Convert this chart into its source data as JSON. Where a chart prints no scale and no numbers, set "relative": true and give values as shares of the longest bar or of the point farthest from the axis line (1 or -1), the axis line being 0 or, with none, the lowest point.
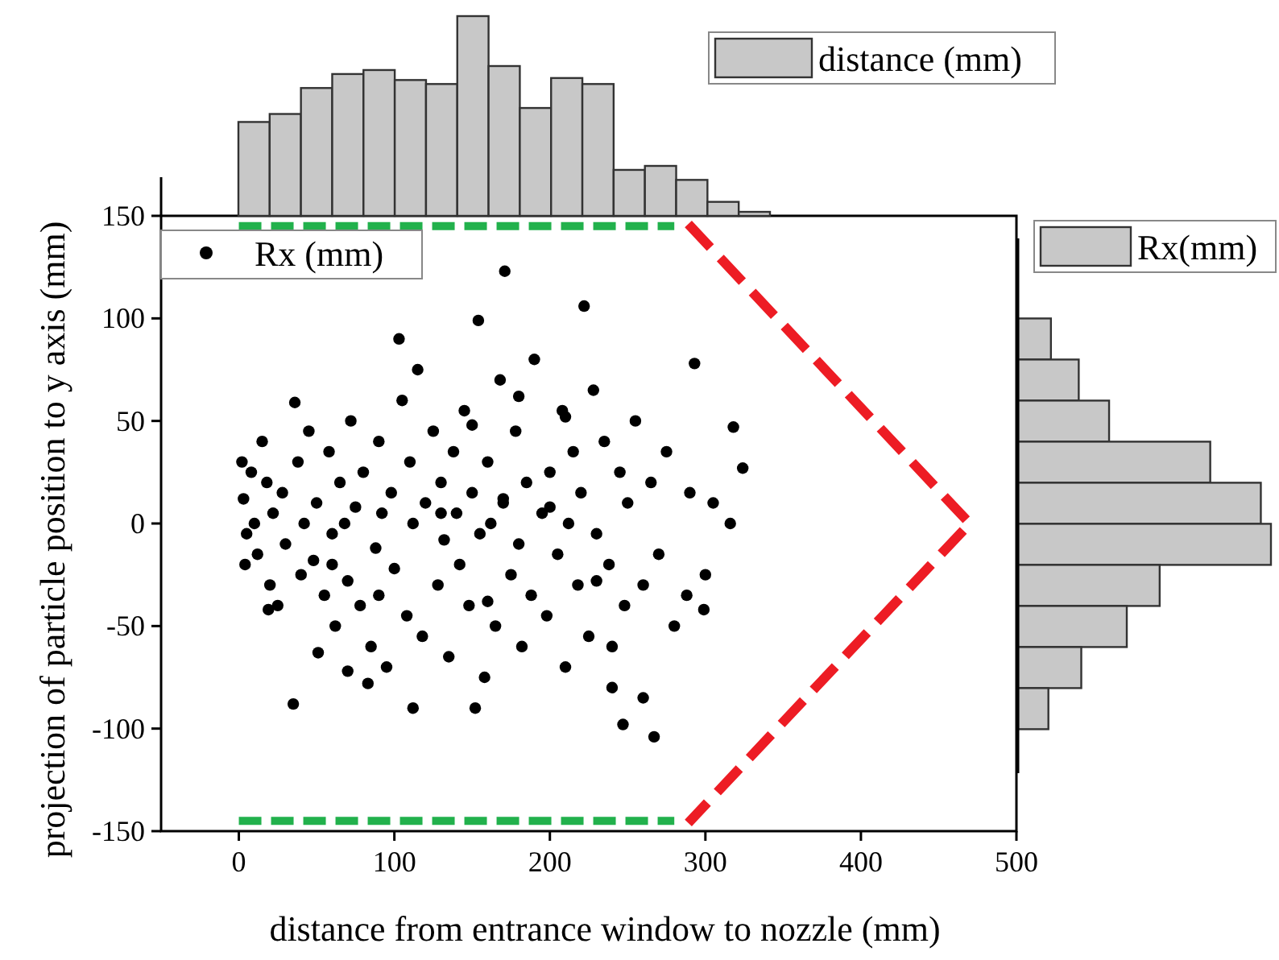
{
  "chart_data": [
    {
      "type": "scatter",
      "xlabel": "distance from entrance window to nozzle (mm)",
      "ylabel": "projection of particle position to y axis (mm)",
      "xlim": [
        -50,
        500
      ],
      "ylim": [
        -150,
        150
      ],
      "xticks": [
        0,
        100,
        200,
        300,
        400,
        500
      ],
      "yticks": [
        -150,
        -100,
        -50,
        0,
        50,
        100,
        150
      ],
      "legend": "top left",
      "marker": "circle",
      "series": [
        {
          "name": "Rx (mm)",
          "color": "#000000",
          "x": [
            171,
            222,
            154,
            103,
            115,
            36,
            293,
            318,
            324,
            316,
            267,
            247,
            288,
            299,
            112,
            152,
            19,
            51,
            83,
            2,
            3,
            5,
            4,
            8,
            10,
            12,
            15,
            18,
            20,
            22,
            25,
            28,
            30,
            38,
            40,
            42,
            45,
            48,
            50,
            55,
            58,
            60,
            62,
            65,
            68,
            70,
            72,
            75,
            78,
            80,
            85,
            88,
            90,
            92,
            95,
            98,
            100,
            105,
            108,
            110,
            112,
            118,
            120,
            125,
            128,
            130,
            132,
            135,
            138,
            140,
            142,
            145,
            148,
            150,
            155,
            158,
            160,
            162,
            165,
            168,
            170,
            175,
            178,
            180,
            182,
            185,
            188,
            190,
            195,
            198,
            200,
            205,
            208,
            210,
            212,
            215,
            218,
            220,
            225,
            228,
            230,
            235,
            238,
            240,
            245,
            248,
            250,
            255,
            260,
            265,
            270,
            275,
            280,
            290,
            300,
            305,
            60,
            130,
            170,
            200,
            240,
            90,
            150,
            180,
            210,
            35,
            70,
            160,
            230,
            260
          ],
          "values": [
            123,
            106,
            99,
            90,
            75,
            59,
            78,
            47,
            27,
            0,
            -104,
            -98,
            -35,
            -42,
            -90,
            -90,
            -42,
            -63,
            -78,
            30,
            12,
            -5,
            -20,
            25,
            0,
            -15,
            40,
            20,
            -30,
            5,
            -40,
            15,
            -10,
            30,
            -25,
            0,
            45,
            -18,
            10,
            -35,
            35,
            -5,
            -50,
            20,
            0,
            -28,
            50,
            8,
            -40,
            25,
            -60,
            -12,
            40,
            5,
            -70,
            15,
            -22,
            60,
            -45,
            30,
            0,
            -55,
            10,
            45,
            -30,
            20,
            -8,
            -65,
            35,
            5,
            -20,
            55,
            -40,
            15,
            -5,
            -75,
            30,
            0,
            -50,
            70,
            10,
            -25,
            45,
            -10,
            -60,
            20,
            -35,
            80,
            5,
            -45,
            25,
            -15,
            55,
            -70,
            0,
            35,
            -30,
            15,
            -55,
            65,
            -5,
            40,
            -20,
            -80,
            25,
            -40,
            10,
            50,
            -30,
            20,
            -15,
            35,
            -50,
            15,
            -25,
            10,
            -20,
            5,
            12,
            8,
            -60,
            -35,
            48,
            62,
            52,
            -88,
            -72,
            -38,
            -28,
            -85
          ]
        },
        {
          "color": "#22b14c",
          "type": "line",
          "line_style": "dashed",
          "marker": "none",
          "x": [
            0,
            280
          ],
          "values": [
            145,
            145
          ]
        },
        {
          "color": "#22b14c",
          "type": "line",
          "line_style": "dashed",
          "marker": "none",
          "x": [
            0,
            280
          ],
          "values": [
            -145,
            -145
          ]
        },
        {
          "color": "#ed1c24",
          "type": "line",
          "line_style": "dashed",
          "marker": "none",
          "x": [
            289,
            470,
            289
          ],
          "values": [
            146,
            0,
            -146
          ]
        }
      ]
    },
    {
      "type": "bar",
      "relative": true,
      "legend": "top right",
      "categories": [
        null,
        null,
        null,
        null,
        null,
        null,
        null,
        null,
        null,
        null,
        null,
        null,
        null,
        null,
        null,
        null,
        null
      ],
      "series": [
        {
          "name": "distance (mm)",
          "color": "#c8c8c8",
          "values": [
            0.47,
            0.51,
            0.64,
            0.71,
            0.73,
            0.68,
            0.66,
            1,
            0.75,
            0.54,
            0.69,
            0.66,
            0.23,
            0.25,
            0.18,
            0.07,
            0.02
          ]
        }
      ]
    },
    {
      "type": "bar",
      "relative": true,
      "orientation": "horizontal",
      "legend": "top",
      "categories": [
        null,
        null,
        null,
        null,
        null,
        null,
        null,
        null,
        null,
        null
      ],
      "series": [
        {
          "name": "Rx(mm)",
          "color": "#c8c8c8",
          "values": [
            0.13,
            0.24,
            0.36,
            0.76,
            0.96,
            1,
            0.56,
            0.43,
            0.25,
            0.12
          ]
        }
      ]
    }
  ]
}
